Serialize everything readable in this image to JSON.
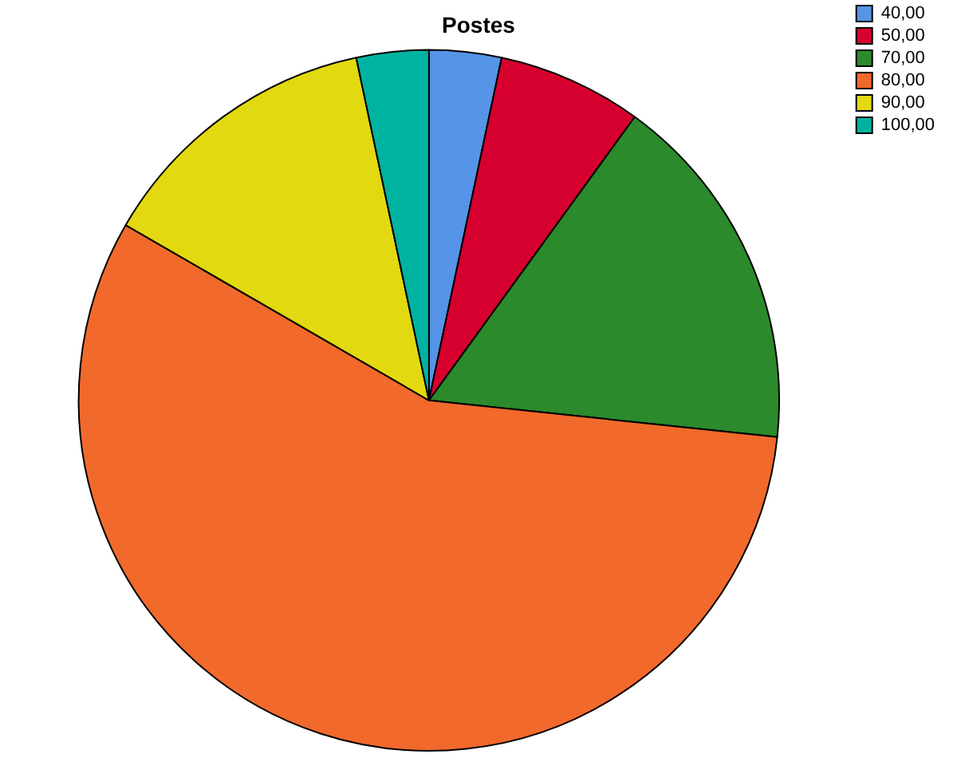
{
  "chart_data": {
    "type": "pie",
    "title": "Postes",
    "categories": [
      "40,00",
      "50,00",
      "70,00",
      "80,00",
      "90,00",
      "100,00"
    ],
    "values": [
      3.33,
      6.67,
      16.67,
      56.67,
      13.33,
      3.33
    ],
    "colors": [
      "#5594e6",
      "#d6002e",
      "#2b8a2b",
      "#f2692c",
      "#e2d910",
      "#00b3a0"
    ],
    "legend": "top right"
  }
}
